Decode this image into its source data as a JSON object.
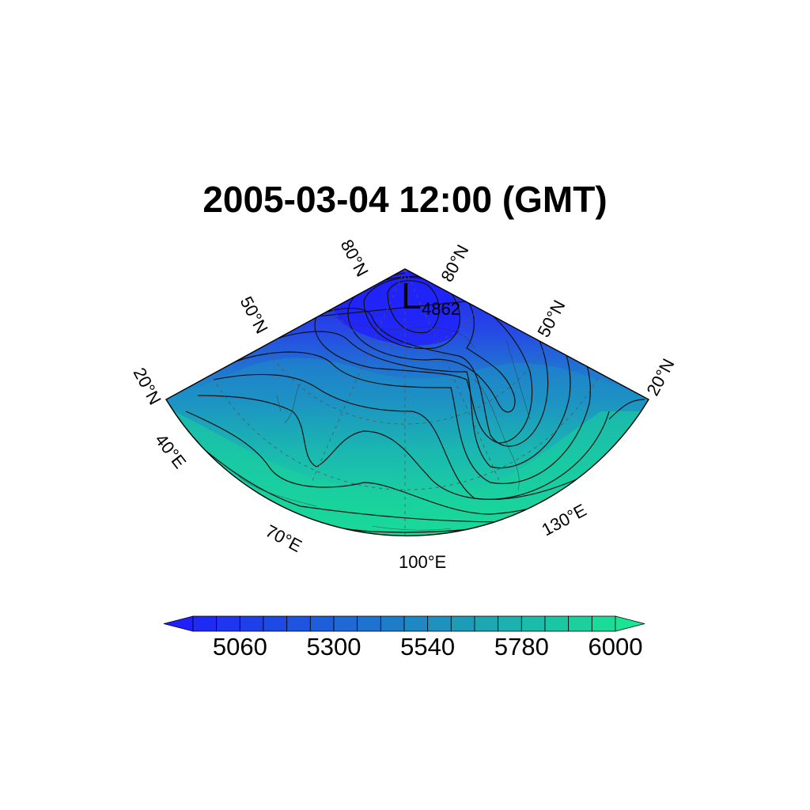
{
  "title": "2005-03-04 12:00 (GMT)",
  "map": {
    "projection": "polar sector",
    "lon_range": [
      40,
      160
    ],
    "lat_range": [
      20,
      90
    ],
    "lat_labels_left": [
      "20°N",
      "50°N",
      "80°N"
    ],
    "lat_labels_right": [
      "80°N",
      "50°N",
      "20°N"
    ],
    "lon_labels": [
      "40°E",
      "70°E",
      "100°E",
      "130°E"
    ],
    "low_marker": {
      "letter": "L",
      "value": "4862"
    },
    "field": {
      "quantity": "geopotential height",
      "contour_levels": [
        4940,
        5000,
        5060,
        5120,
        5180,
        5240,
        5300,
        5360,
        5420,
        5480,
        5540,
        5600,
        5660,
        5720,
        5780,
        5840,
        5900,
        5960,
        6000
      ]
    }
  },
  "colorbar": {
    "min": 4940,
    "max": 6020,
    "levels": [
      4940,
      5000,
      5060,
      5120,
      5180,
      5240,
      5300,
      5360,
      5420,
      5480,
      5540,
      5600,
      5660,
      5720,
      5780,
      5840,
      5900,
      5960,
      6000
    ],
    "labels": [
      "5060",
      "5300",
      "5540",
      "5780",
      "6000"
    ],
    "color_low": "#2020fb",
    "color_high": "#1ae592"
  }
}
